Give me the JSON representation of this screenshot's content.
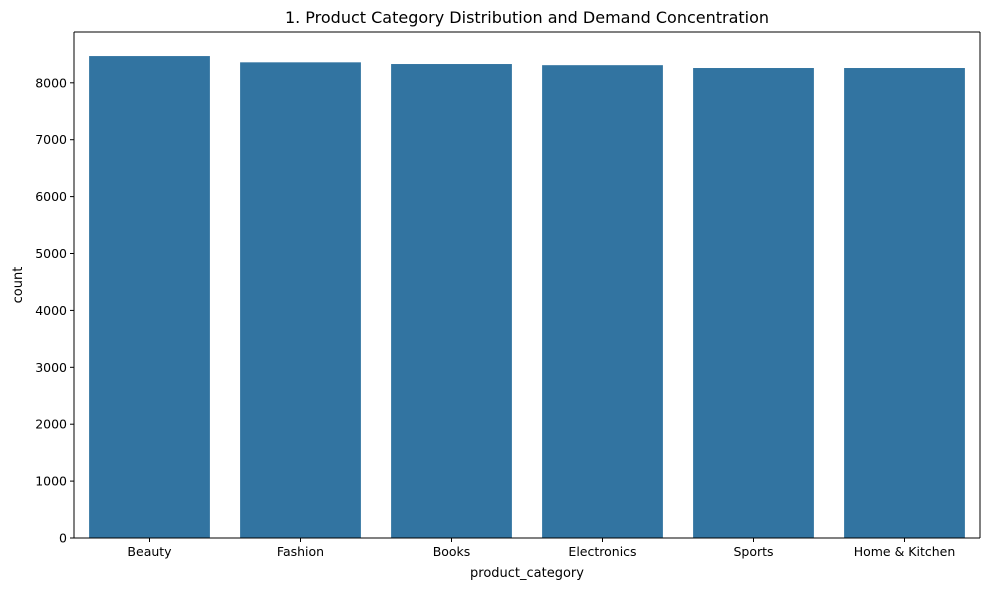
{
  "chart_data": {
    "type": "bar",
    "title": "1. Product Category Distribution and Demand Concentration",
    "xlabel": "product_category",
    "ylabel": "count",
    "categories": [
      "Beauty",
      "Fashion",
      "Books",
      "Electronics",
      "Sports",
      "Home & Kitchen"
    ],
    "values": [
      8470,
      8360,
      8330,
      8310,
      8260,
      8260
    ],
    "ylim": [
      0,
      8893
    ],
    "yticks": [
      0,
      1000,
      2000,
      3000,
      4000,
      5000,
      6000,
      7000,
      8000
    ],
    "grid": false,
    "legend": "none",
    "bar_color": "#3274a1"
  }
}
